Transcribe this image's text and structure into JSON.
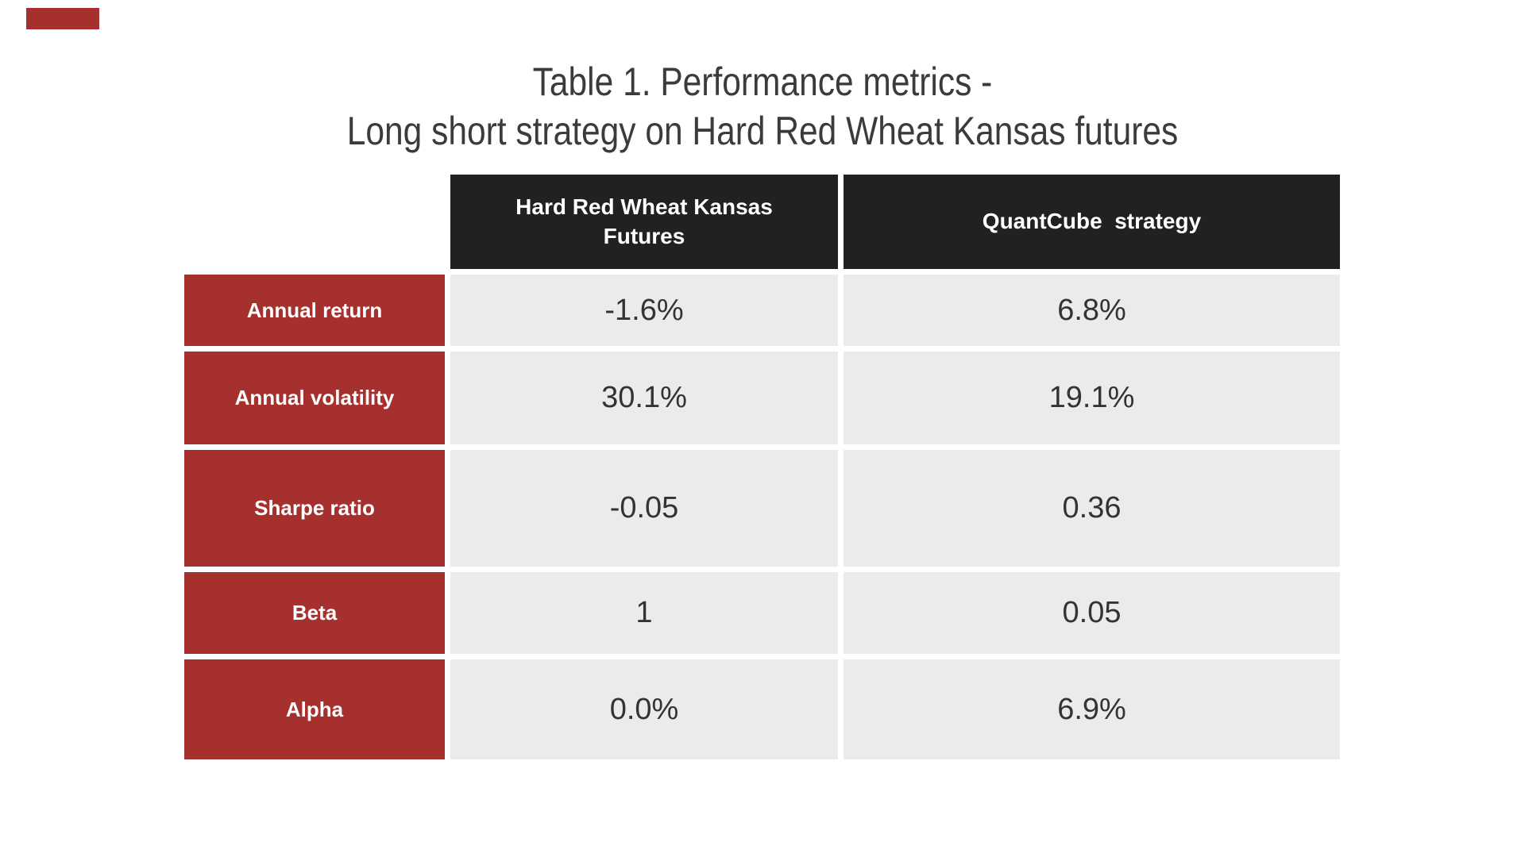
{
  "brand": {
    "mark_color": "#a5302e"
  },
  "title": {
    "line1": "Table 1. Performance metrics -",
    "line2": "Long short strategy on Hard Red Wheat Kansas futures"
  },
  "chart_data": {
    "type": "table",
    "title": "Table 1. Performance metrics - Long short strategy on Hard Red Wheat Kansas futures",
    "columns": [
      "",
      "Hard Red Wheat Kansas Futures",
      "QuantCube  strategy"
    ],
    "rows": [
      {
        "metric": "Annual return",
        "futures": "-1.6%",
        "strategy": "6.8%"
      },
      {
        "metric": "Annual volatility",
        "futures": "30.1%",
        "strategy": "19.1%"
      },
      {
        "metric": "Sharpe ratio",
        "futures": "-0.05",
        "strategy": "0.36"
      },
      {
        "metric": "Beta",
        "futures": "1",
        "strategy": "0.05"
      },
      {
        "metric": "Alpha",
        "futures": "0.0%",
        "strategy": "6.9%"
      }
    ]
  },
  "table": {
    "col_headers": {
      "futures": "Hard Red Wheat Kansas\nFutures",
      "strategy": "QuantCube  strategy"
    },
    "rows": [
      {
        "label": "Annual return",
        "futures": "-1.6%",
        "strategy": "6.8%"
      },
      {
        "label": "Annual volatility",
        "futures": "30.1%",
        "strategy": "19.1%"
      },
      {
        "label": "Sharpe ratio",
        "futures": "-0.05",
        "strategy": "0.36"
      },
      {
        "label": "Beta",
        "futures": "1",
        "strategy": "0.05"
      },
      {
        "label": "Alpha",
        "futures": "0.0%",
        "strategy": "6.9%"
      }
    ],
    "colors": {
      "header_bg": "#212121",
      "label_bg": "#a5302e",
      "cell_bg": "#ebebeb",
      "header_text": "#ffffff",
      "value_text": "#333333",
      "title_text": "#3b3b3b"
    }
  }
}
